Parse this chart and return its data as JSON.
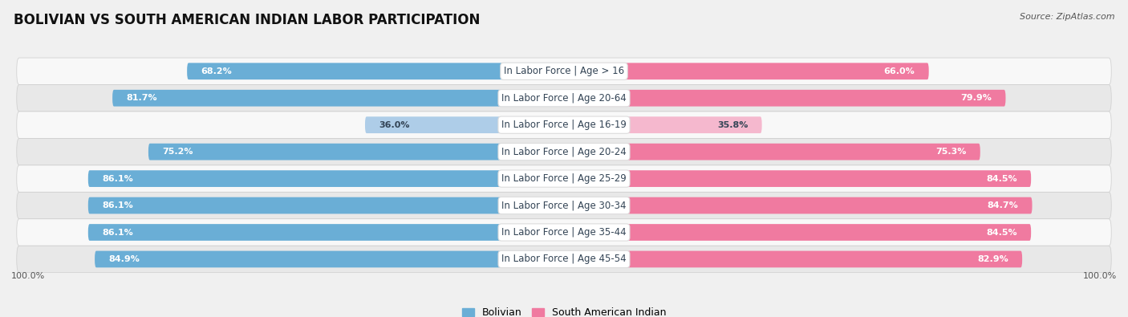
{
  "title": "BOLIVIAN VS SOUTH AMERICAN INDIAN LABOR PARTICIPATION",
  "source": "Source: ZipAtlas.com",
  "categories": [
    "In Labor Force | Age > 16",
    "In Labor Force | Age 20-64",
    "In Labor Force | Age 16-19",
    "In Labor Force | Age 20-24",
    "In Labor Force | Age 25-29",
    "In Labor Force | Age 30-34",
    "In Labor Force | Age 35-44",
    "In Labor Force | Age 45-54"
  ],
  "bolivian": [
    68.2,
    81.7,
    36.0,
    75.2,
    86.1,
    86.1,
    86.1,
    84.9
  ],
  "south_american_indian": [
    66.0,
    79.9,
    35.8,
    75.3,
    84.5,
    84.7,
    84.5,
    82.9
  ],
  "bolivian_color": "#6aaed6",
  "bolivian_light_color": "#aecde8",
  "south_american_indian_color": "#f07aa0",
  "south_american_indian_light_color": "#f5b8ce",
  "background_color": "#f0f0f0",
  "row_bg_light": "#f8f8f8",
  "row_bg_dark": "#e8e8e8",
  "label_fontsize": 8.0,
  "title_fontsize": 12,
  "legend_fontsize": 9,
  "axis_label_fontsize": 8,
  "max_value": 100.0,
  "center_label_color": "#334455"
}
